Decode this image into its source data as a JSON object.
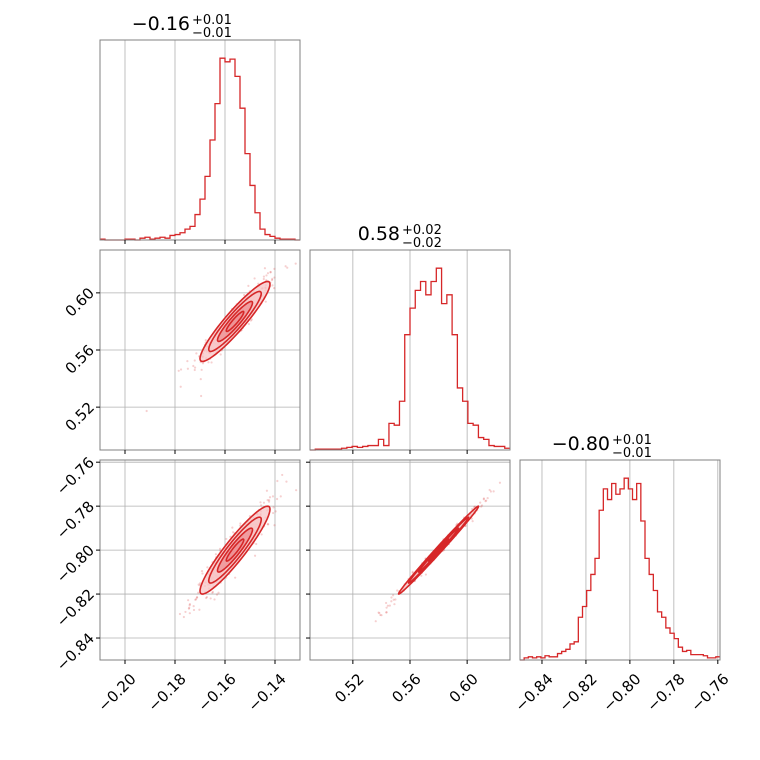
{
  "colors": {
    "accent": "#d62728",
    "fill_light": "#f7c4c5",
    "fill_mid": "#ee8f91",
    "grid": "#b0b0b0",
    "frame": "#808080"
  },
  "chart_data": {
    "type": "corner",
    "parameters": [
      {
        "title_value": "−0.16",
        "title_sup": "+0.01",
        "title_sub": "−0.01",
        "range": [
          -0.21,
          -0.13
        ],
        "ticks": [
          -0.2,
          -0.18,
          -0.16,
          -0.14
        ],
        "tick_labels": [
          "−0.20",
          "−0.18",
          "−0.16",
          "−0.14"
        ]
      },
      {
        "title_value": "0.58",
        "title_sup": "+0.02",
        "title_sub": "−0.02",
        "range": [
          0.49,
          0.63
        ],
        "ticks": [
          0.52,
          0.56,
          0.6
        ],
        "tick_labels": [
          "0.52",
          "0.56",
          "0.60"
        ]
      },
      {
        "title_value": "−0.80",
        "title_sup": "+0.01",
        "title_sub": "−0.01",
        "range": [
          -0.85,
          -0.759
        ],
        "ticks": [
          -0.84,
          -0.82,
          -0.8,
          -0.78,
          -0.76
        ],
        "tick_labels": [
          "−0.84",
          "−0.82",
          "−0.80",
          "−0.78",
          "−0.76"
        ]
      }
    ],
    "histograms": [
      {
        "param": 0,
        "bin_edges": [
          -0.21,
          -0.13
        ],
        "counts": [
          1,
          0,
          0,
          0,
          0,
          1,
          1,
          0,
          2,
          3,
          1,
          2,
          3,
          2,
          5,
          6,
          8,
          12,
          15,
          28,
          45,
          70,
          110,
          150,
          200,
          196,
          199,
          180,
          145,
          95,
          60,
          30,
          12,
          6,
          4,
          2,
          1,
          1,
          1,
          0
        ]
      },
      {
        "param": 1,
        "bin_edges": [
          0.49,
          0.63
        ],
        "counts": [
          0,
          1,
          1,
          1,
          1,
          1,
          2,
          3,
          4,
          3,
          4,
          5,
          5,
          12,
          5,
          30,
          28,
          55,
          130,
          160,
          180,
          190,
          175,
          190,
          205,
          165,
          175,
          130,
          70,
          55,
          30,
          28,
          14,
          12,
          5,
          4,
          4,
          2
        ]
      },
      {
        "param": 2,
        "bin_edges": [
          -0.85,
          -0.759
        ],
        "counts": [
          0,
          2,
          3,
          2,
          3,
          2,
          4,
          3,
          3,
          6,
          8,
          10,
          15,
          17,
          40,
          50,
          65,
          80,
          95,
          140,
          160,
          150,
          165,
          155,
          160,
          170,
          160,
          150,
          165,
          130,
          95,
          80,
          65,
          45,
          40,
          30,
          25,
          20,
          12,
          8,
          9,
          5,
          5,
          5,
          4,
          2,
          2,
          3
        ]
      }
    ],
    "pairs": [
      {
        "x_param": 0,
        "y_param": 1,
        "mean": [
          -0.156,
          0.58
        ],
        "sd": [
          0.007,
          0.014
        ],
        "rho": 0.93
      },
      {
        "x_param": 0,
        "y_param": 2,
        "mean": [
          -0.156,
          -0.8
        ],
        "sd": [
          0.007,
          0.01
        ],
        "rho": 0.93
      },
      {
        "x_param": 1,
        "y_param": 2,
        "mean": [
          0.58,
          -0.8
        ],
        "sd": [
          0.014,
          0.01
        ],
        "rho": 0.995
      }
    ],
    "grid": true
  }
}
